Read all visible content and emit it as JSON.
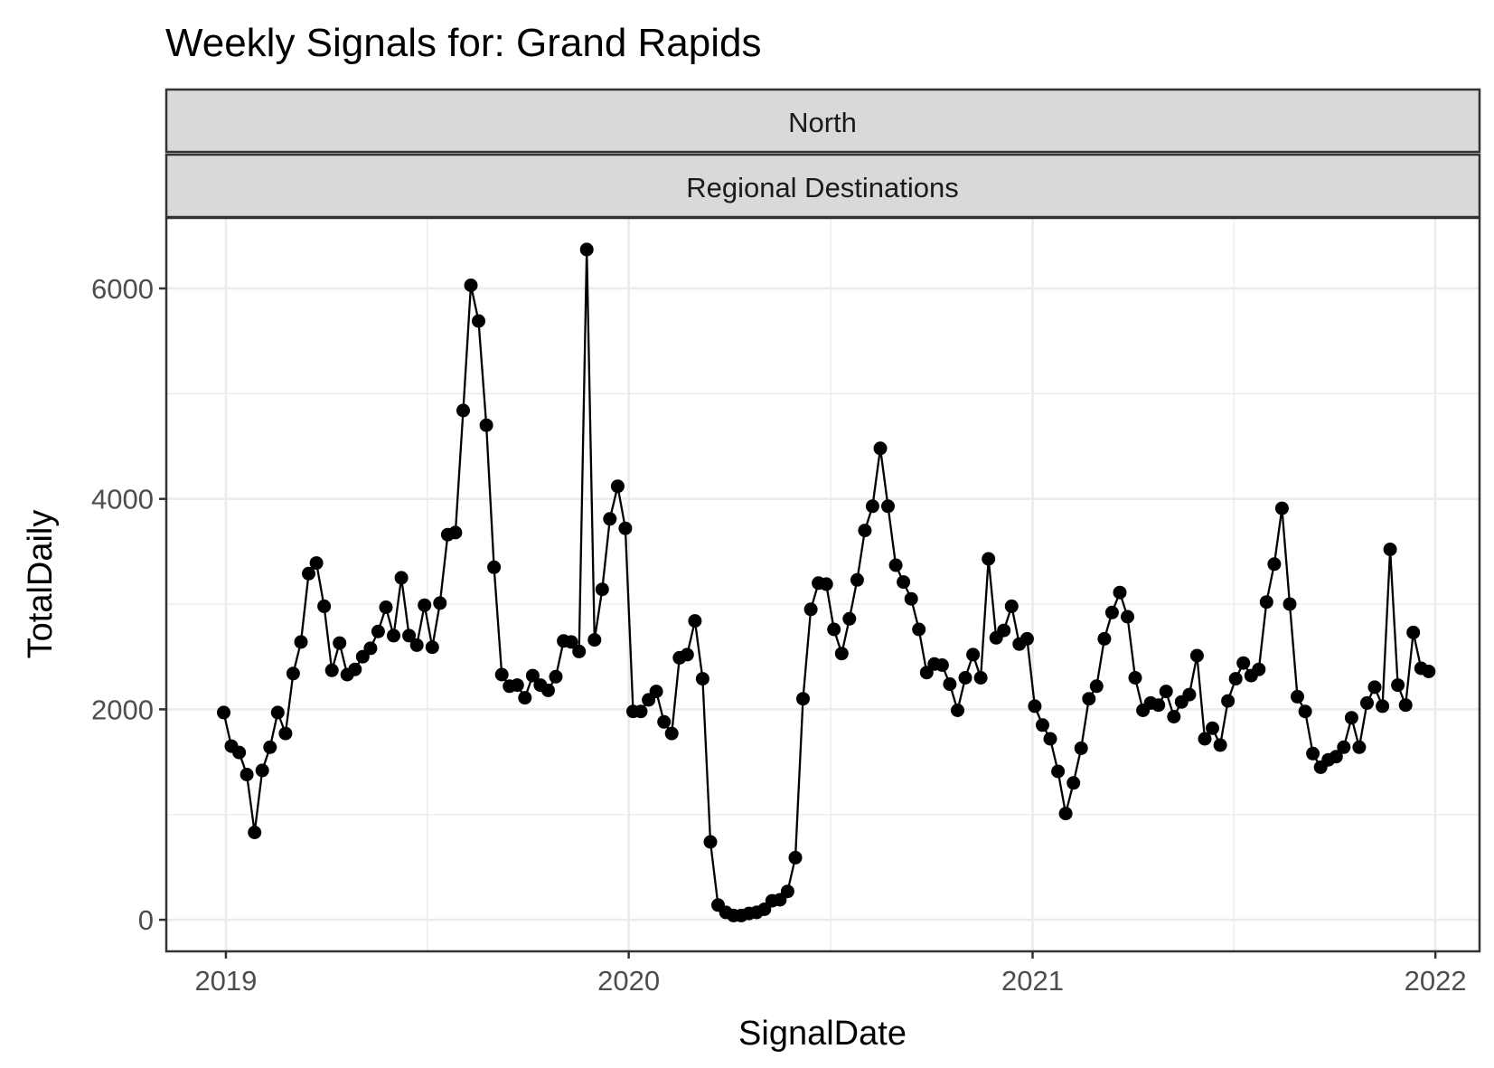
{
  "chart_data": {
    "type": "line",
    "title": "Weekly Signals for: Grand Rapids",
    "facet_labels": [
      "North",
      "Regional Destinations"
    ],
    "xlabel": "SignalDate",
    "ylabel": "TotalDaily",
    "x_ticks": [
      "2019",
      "2020",
      "2021",
      "2022"
    ],
    "y_ticks": [
      "0",
      "2000",
      "4000",
      "6000"
    ],
    "xlim": [
      "2018-11-08",
      "2022-02-10"
    ],
    "ylim": [
      -300,
      6670
    ],
    "grid": true,
    "markers": true,
    "series": [
      {
        "x": [
          "2018-12-30",
          "2019-01-06",
          "2019-01-13",
          "2019-01-20",
          "2019-01-27",
          "2019-02-03",
          "2019-02-10",
          "2019-02-17",
          "2019-02-24",
          "2019-03-03",
          "2019-03-10",
          "2019-03-17",
          "2019-03-24",
          "2019-03-31",
          "2019-04-07",
          "2019-04-14",
          "2019-04-21",
          "2019-04-28",
          "2019-05-05",
          "2019-05-12",
          "2019-05-19",
          "2019-05-26",
          "2019-06-02",
          "2019-06-09",
          "2019-06-16",
          "2019-06-23",
          "2019-06-30",
          "2019-07-07",
          "2019-07-14",
          "2019-07-21",
          "2019-07-28",
          "2019-08-04",
          "2019-08-11",
          "2019-08-18",
          "2019-08-25",
          "2019-09-01",
          "2019-09-08",
          "2019-09-15",
          "2019-09-22",
          "2019-09-29",
          "2019-10-06",
          "2019-10-13",
          "2019-10-20",
          "2019-10-27",
          "2019-11-03",
          "2019-11-10",
          "2019-11-17",
          "2019-11-24",
          "2019-12-01",
          "2019-12-08",
          "2019-12-15",
          "2019-12-22",
          "2019-12-29",
          "2020-01-05",
          "2020-01-12",
          "2020-01-19",
          "2020-01-26",
          "2020-02-02",
          "2020-02-09",
          "2020-02-16",
          "2020-02-23",
          "2020-03-01",
          "2020-03-08",
          "2020-03-15",
          "2020-03-22",
          "2020-03-29",
          "2020-04-05",
          "2020-04-12",
          "2020-04-19",
          "2020-04-26",
          "2020-05-03",
          "2020-05-10",
          "2020-05-17",
          "2020-05-24",
          "2020-05-31",
          "2020-06-07",
          "2020-06-14",
          "2020-06-21",
          "2020-06-28",
          "2020-07-05",
          "2020-07-12",
          "2020-07-19",
          "2020-07-26",
          "2020-08-02",
          "2020-08-09",
          "2020-08-16",
          "2020-08-23",
          "2020-08-30",
          "2020-09-06",
          "2020-09-13",
          "2020-09-20",
          "2020-09-27",
          "2020-10-04",
          "2020-10-11",
          "2020-10-18",
          "2020-10-25",
          "2020-11-01",
          "2020-11-08",
          "2020-11-15",
          "2020-11-22",
          "2020-11-29",
          "2020-12-06",
          "2020-12-13",
          "2020-12-20",
          "2020-12-27",
          "2021-01-03",
          "2021-01-10",
          "2021-01-17",
          "2021-01-24",
          "2021-01-31",
          "2021-02-07",
          "2021-02-14",
          "2021-02-21",
          "2021-02-28",
          "2021-03-07",
          "2021-03-14",
          "2021-03-21",
          "2021-03-28",
          "2021-04-04",
          "2021-04-11",
          "2021-04-18",
          "2021-04-25",
          "2021-05-02",
          "2021-05-09",
          "2021-05-16",
          "2021-05-23",
          "2021-05-30",
          "2021-06-06",
          "2021-06-13",
          "2021-06-20",
          "2021-06-27",
          "2021-07-04",
          "2021-07-11",
          "2021-07-18",
          "2021-07-25",
          "2021-08-01",
          "2021-08-08",
          "2021-08-15",
          "2021-08-22",
          "2021-08-29",
          "2021-09-05",
          "2021-09-12",
          "2021-09-19",
          "2021-09-26",
          "2021-10-03",
          "2021-10-10",
          "2021-10-17",
          "2021-10-24",
          "2021-10-31",
          "2021-11-07",
          "2021-11-14",
          "2021-11-21",
          "2021-11-28",
          "2021-12-05",
          "2021-12-12",
          "2021-12-19",
          "2021-12-26"
        ],
        "y": [
          1970,
          1650,
          1590,
          1380,
          830,
          1420,
          1640,
          1970,
          1770,
          2340,
          2640,
          3290,
          3390,
          2980,
          2370,
          2630,
          2330,
          2380,
          2500,
          2580,
          2740,
          2970,
          2700,
          3250,
          2700,
          2610,
          2990,
          2590,
          3010,
          3660,
          3680,
          4840,
          6030,
          5690,
          4700,
          3350,
          2330,
          2220,
          2230,
          2110,
          2320,
          2230,
          2180,
          2310,
          2650,
          2640,
          2550,
          6370,
          2660,
          3140,
          3810,
          4120,
          3720,
          1980,
          1980,
          2090,
          2170,
          1880,
          1770,
          2490,
          2520,
          2840,
          2290,
          740,
          140,
          70,
          40,
          40,
          60,
          70,
          100,
          180,
          190,
          270,
          590,
          2100,
          2950,
          3200,
          3190,
          2760,
          2530,
          2860,
          3230,
          3700,
          3930,
          4480,
          3930,
          3370,
          3210,
          3050,
          2760,
          2350,
          2430,
          2420,
          2240,
          1990,
          2300,
          2520,
          2300,
          3430,
          2680,
          2750,
          2980,
          2620,
          2670,
          2030,
          1850,
          1720,
          1410,
          1010,
          1300,
          1630,
          2100,
          2220,
          2670,
          2920,
          3110,
          2880,
          2300,
          1990,
          2060,
          2040,
          2170,
          1930,
          2070,
          2140,
          2510,
          1720,
          1820,
          1660,
          2080,
          2290,
          2440,
          2320,
          2380,
          3020,
          3380,
          3910,
          3000,
          2120,
          1980,
          1580,
          1450,
          1520,
          1550,
          1640,
          1920,
          1640,
          2060,
          2210,
          2030,
          3520,
          2230,
          2040,
          2730,
          2390,
          2360
        ]
      }
    ]
  }
}
